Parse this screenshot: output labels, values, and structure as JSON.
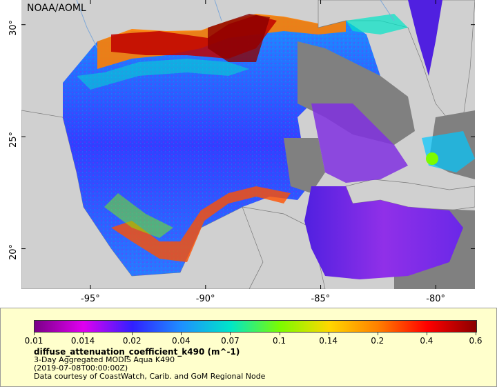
{
  "map": {
    "credit": "NOAA/AOML",
    "lat_labels": [
      "30°",
      "25°",
      "20°"
    ],
    "lat_values": [
      30,
      25,
      20
    ],
    "lon_labels": [
      "-95°",
      "-90°",
      "-85°",
      "-80°"
    ],
    "lon_values": [
      -95,
      -90,
      -85,
      -80
    ],
    "lon_range": [
      -98,
      -78.3
    ],
    "lat_range": [
      18.2,
      31.1
    ],
    "land_color": "#d0d0d0",
    "nodata_color": "#808080"
  },
  "legend": {
    "ticks": [
      "0.01",
      "0.014",
      "0.02",
      "0.04",
      "0.07",
      "0.1",
      "0.14",
      "0.2",
      "0.4",
      "0.6"
    ],
    "colors": [
      "#7a0087",
      "#e000f0",
      "#3020ff",
      "#1e90ff",
      "#00e6c8",
      "#7cfc00",
      "#ffd700",
      "#ff7f00",
      "#ff0000",
      "#8b0000"
    ],
    "variable": "diffuse_attenuation_coefficient_k490 (m^-1)",
    "product": "3-Day Aggregated MODIS Aqua K490",
    "time": "(2019-07-08T00:00:00Z)",
    "source": "Data courtesy of CoastWatch, Carib. and GoM Regional Node"
  }
}
